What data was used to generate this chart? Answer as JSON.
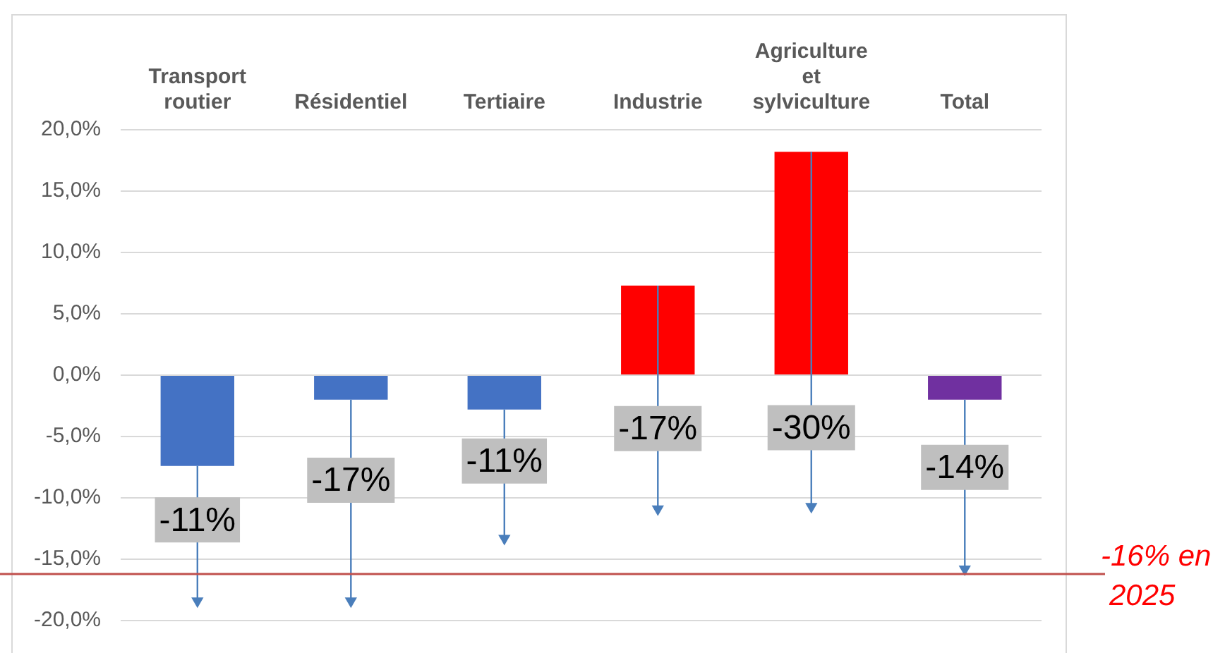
{
  "chart_data": {
    "type": "bar",
    "categories": [
      "Transport routier",
      "Résidentiel",
      "Tertiaire",
      "Industrie",
      "Agriculture et sylviculture",
      "Total"
    ],
    "series": [
      {
        "values": [
          -7.4,
          -2.0,
          -2.8,
          7.3,
          18.2,
          -2.0
        ],
        "colors": [
          "#4472c4",
          "#4472c4",
          "#4472c4",
          "#ff0000",
          "#ff0000",
          "#7030a0"
        ]
      },
      {
        "type": "scatter",
        "values": [
          -18.4,
          -18.4,
          -13.3,
          -10.9,
          -10.7,
          -15.8
        ],
        "errors": [
          [
            -18.4,
            -7.4
          ],
          [
            -18.4,
            -2.0
          ],
          [
            -13.3,
            -2.8
          ],
          [
            -10.9,
            7.3
          ],
          [
            -10.7,
            18.2
          ],
          [
            -15.8,
            -2.0
          ]
        ],
        "color": "#4a7ebb",
        "marker": "triangle"
      }
    ],
    "ylim": [
      -20,
      20
    ],
    "yticks": [
      {
        "value": -20,
        "label": "-20,0%"
      },
      {
        "value": -15,
        "label": "-15,0%"
      },
      {
        "value": -10,
        "label": "-10,0%"
      },
      {
        "value": -5,
        "label": "-5,0%"
      },
      {
        "value": 0,
        "label": "0,0%"
      },
      {
        "value": 5,
        "label": "5,0%"
      },
      {
        "value": 10,
        "label": "10,0%"
      },
      {
        "value": 15,
        "label": "15,0%"
      },
      {
        "value": 20,
        "label": "20,0%"
      }
    ],
    "grid": "y",
    "ref_lines": [
      {
        "axis": "y",
        "value": -16.2,
        "label": "-16% en 2025",
        "color": "#c0504d"
      }
    ],
    "annotations": [
      "-11%",
      "-17%",
      "-11%",
      "-17%",
      "-30%",
      "-14%"
    ]
  }
}
